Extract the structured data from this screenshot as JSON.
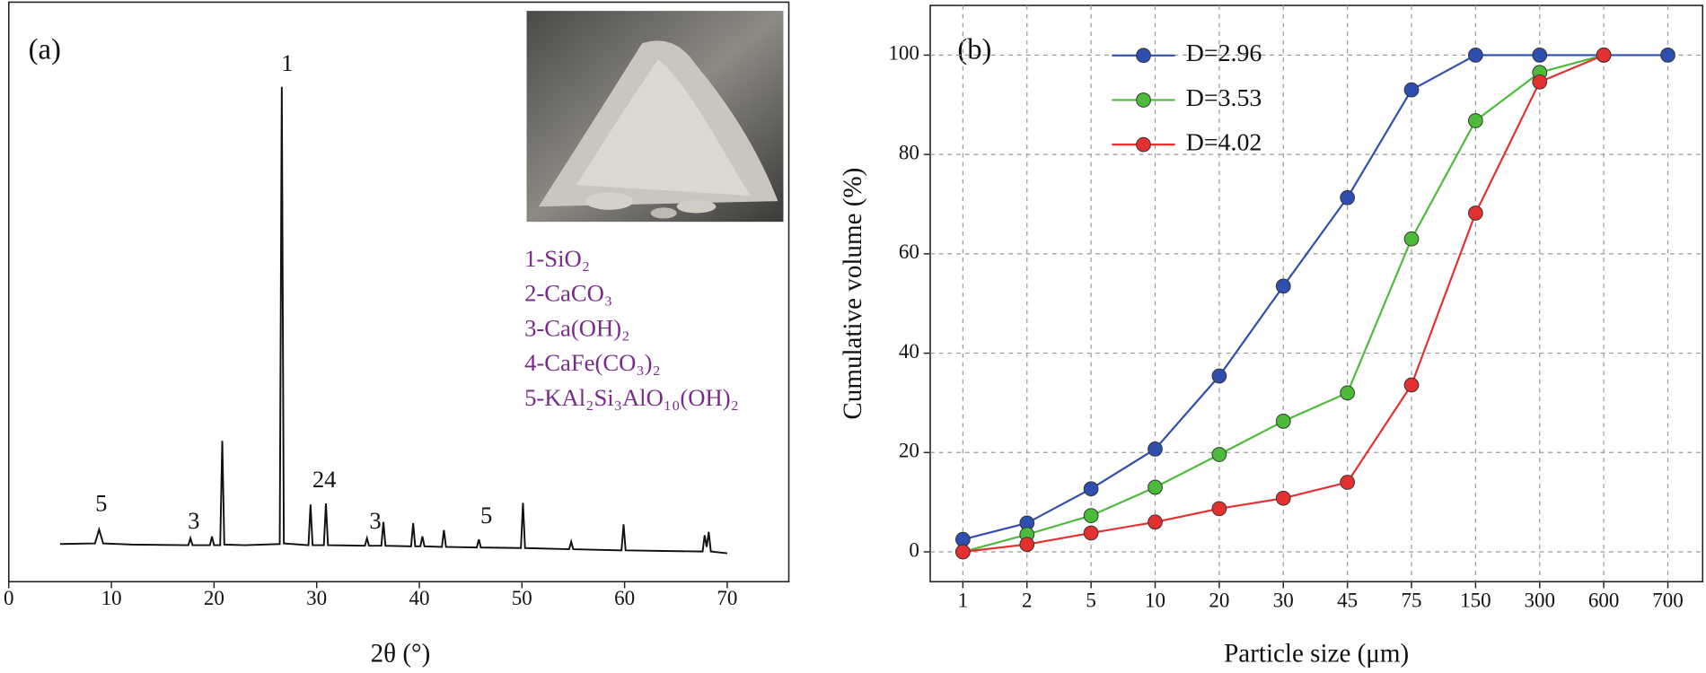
{
  "chart_data": [
    {
      "type": "line",
      "panel_label": "(a)",
      "x_label": "2θ (°)",
      "x": [
        5,
        8.4,
        8.8,
        9.2,
        12,
        17.5,
        17.7,
        17.9,
        19.6,
        19.8,
        20.0,
        20.6,
        20.8,
        21.0,
        23,
        26.4,
        26.6,
        26.8,
        29.2,
        29.4,
        29.6,
        30.7,
        30.9,
        31.1,
        34.7,
        34.9,
        35.1,
        36.3,
        36.5,
        36.7,
        39.2,
        39.4,
        39.6,
        40.1,
        40.3,
        40.5,
        42.2,
        42.4,
        42.6,
        45.6,
        45.8,
        46.0,
        49.9,
        50.1,
        50.3,
        54.6,
        54.8,
        55.0,
        59.7,
        59.9,
        60.1,
        67.6,
        67.8,
        68.0,
        68.2,
        68.4,
        70
      ],
      "values": [
        6.5,
        6.6,
        9,
        6.6,
        6.4,
        6.3,
        7.5,
        6.3,
        6.3,
        7.8,
        6.3,
        6.3,
        24.3,
        6.4,
        6.3,
        6.5,
        85.4,
        6.6,
        6.3,
        13.3,
        6.3,
        6.3,
        13.5,
        6.3,
        6.2,
        7.5,
        6.2,
        6.2,
        10.3,
        6.2,
        6.1,
        10.1,
        6.1,
        6.1,
        7.8,
        6.1,
        6.0,
        8.9,
        6.0,
        5.9,
        7.3,
        5.9,
        5.8,
        13.6,
        5.8,
        5.6,
        6.9,
        5.6,
        5.4,
        9.9,
        5.4,
        5.2,
        8,
        6,
        8.6,
        5.2,
        4.9
      ],
      "color": "#111111",
      "xlim": [
        0,
        76
      ],
      "xticks": [
        0,
        10,
        20,
        30,
        40,
        50,
        60,
        70
      ],
      "ylim": [
        0,
        100
      ],
      "annotations": [
        "5",
        "3",
        "1",
        "24",
        "3",
        "5"
      ],
      "phases": [
        "1-SiO₂",
        "2-CaCO₃",
        "3-Ca(OH)₂",
        "4-CaFe(CO₃)₂",
        "5-KAl₂Si₃AlO₁₀(OH)₂"
      ]
    },
    {
      "type": "line",
      "panel_label": "(b)",
      "x_label": "Particle size (μm)",
      "y_label": "Cumulative volume (%)",
      "categories": [
        "1",
        "2",
        "5",
        "10",
        "20",
        "30",
        "45",
        "75",
        "150",
        "300",
        "600",
        "700"
      ],
      "series": [
        {
          "name": "D=2.96",
          "color": "#2f4fb0",
          "values": [
            2.5,
            5.8,
            12.7,
            20.7,
            35.4,
            53.5,
            71.3,
            93,
            100,
            100,
            100,
            100
          ]
        },
        {
          "name": "D=3.53",
          "color": "#4cbb3a",
          "values": [
            0,
            3.5,
            7.3,
            13,
            19.6,
            26.3,
            32,
            63,
            86.8,
            96.5,
            100,
            null
          ]
        },
        {
          "name": "D=4.02",
          "color": "#e53030",
          "values": [
            0,
            1.5,
            3.8,
            6,
            8.7,
            10.8,
            14,
            33.6,
            68.2,
            94.6,
            100,
            null
          ]
        }
      ],
      "ylim": [
        -6,
        110
      ],
      "yticks": [
        0,
        20,
        40,
        60,
        80,
        100
      ],
      "grid": true,
      "legend": "upper left"
    }
  ]
}
